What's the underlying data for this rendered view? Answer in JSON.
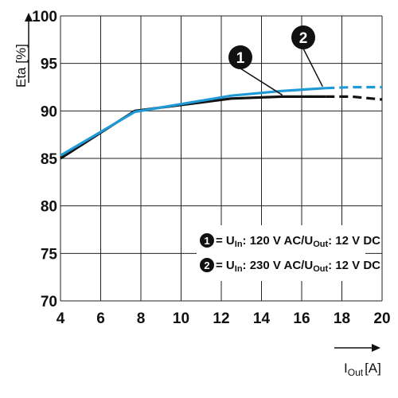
{
  "chart_data": {
    "type": "line",
    "xlabel_main": "I",
    "xlabel_sub": "Out",
    "xlabel_unit": "[A]",
    "ylabel": "Eta [%]",
    "xlim": [
      4,
      20
    ],
    "ylim": [
      70,
      100
    ],
    "x_ticks": [
      4,
      6,
      8,
      10,
      12,
      14,
      16,
      18,
      20
    ],
    "y_ticks": [
      70,
      75,
      80,
      85,
      90,
      95,
      100
    ],
    "grid": true,
    "legend_position": "bottom-right",
    "series": [
      {
        "id": "1",
        "color": "#111111",
        "solid": [
          [
            4,
            85.0
          ],
          [
            7.7,
            90.0
          ],
          [
            12.5,
            91.3
          ],
          [
            15,
            91.5
          ],
          [
            17.2,
            91.5
          ]
        ],
        "dashed": [
          [
            17.2,
            91.5
          ],
          [
            18.5,
            91.5
          ],
          [
            20,
            91.2
          ]
        ]
      },
      {
        "id": "2",
        "color": "#1f9ad6",
        "solid": [
          [
            4,
            85.3
          ],
          [
            7.7,
            89.9
          ],
          [
            12.5,
            91.6
          ],
          [
            15,
            92.1
          ],
          [
            17.2,
            92.4
          ]
        ],
        "dashed": [
          [
            17.2,
            92.4
          ],
          [
            18.5,
            92.5
          ],
          [
            20,
            92.5
          ]
        ]
      }
    ],
    "annotations": [
      {
        "id": "1",
        "label": "1",
        "x": 15.0,
        "y": 91.5
      },
      {
        "id": "2",
        "label": "2",
        "x": 17.0,
        "y": 92.4
      }
    ],
    "legend": [
      {
        "badge": "1",
        "text_a": "= U",
        "sub_a": "In",
        "text_b": ": 120 V AC/U",
        "sub_b": "Out",
        "text_c": ": 12 V DC"
      },
      {
        "badge": "2",
        "text_a": "= U",
        "sub_a": "In",
        "text_b": ": 230 V AC/U",
        "sub_b": "Out",
        "text_c": ": 12 V DC"
      }
    ]
  }
}
